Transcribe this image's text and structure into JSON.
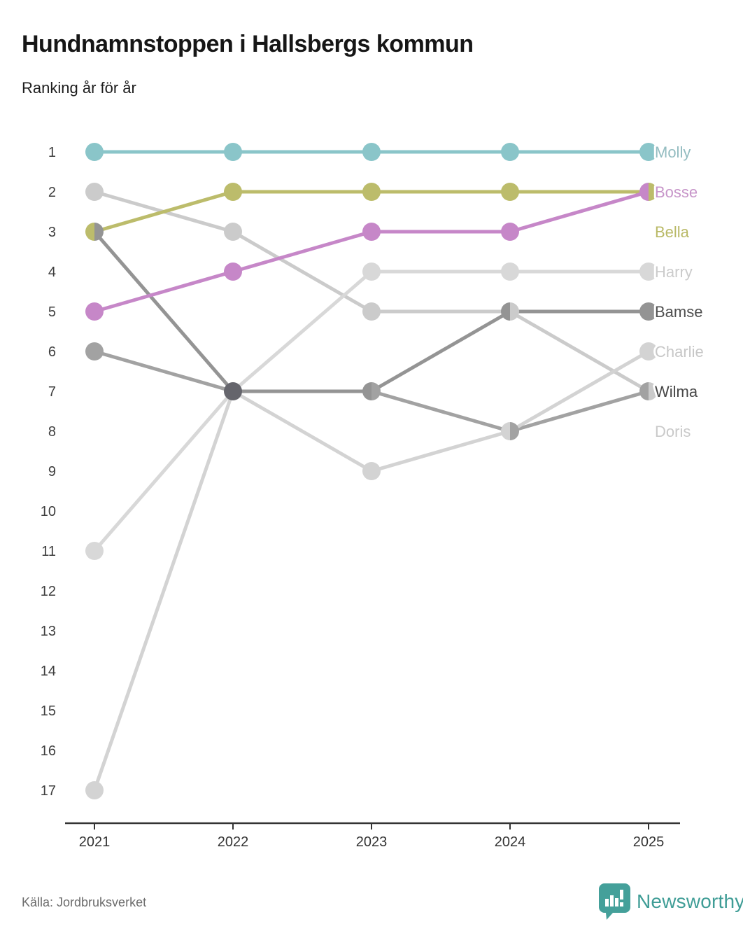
{
  "header": {
    "title": "Hundnamnstoppen i Hallsbergs kommun",
    "subtitle": "Ranking år för år"
  },
  "chart_data": {
    "type": "line",
    "subtype": "bump-ranking",
    "x": [
      2021,
      2022,
      2023,
      2024,
      2025
    ],
    "yticks": [
      1,
      2,
      3,
      4,
      5,
      6,
      7,
      8,
      9,
      10,
      11,
      12,
      13,
      14,
      15,
      16,
      17
    ],
    "ylim": [
      1,
      17
    ],
    "y_axis_inverted": true,
    "grid": false,
    "legend_position": "labels-right-of-last-point",
    "axis_color": "#333333",
    "tick_label_color": "#333333",
    "rank_label_color": "#3d3d3d",
    "multi_overlap_dot_color": "#65656c",
    "series": [
      {
        "name": "Molly",
        "color": "#8ac5c9",
        "label_color": "#93bcc0",
        "values": [
          1,
          1,
          1,
          1,
          1
        ],
        "label_rank": 1
      },
      {
        "name": "Bosse",
        "color": "#c687c8",
        "label_color": "#c795c9",
        "values": [
          5,
          4,
          3,
          3,
          2
        ],
        "label_rank": 2
      },
      {
        "name": "Bella",
        "color": "#bcbc6b",
        "label_color": "#b9b966",
        "values": [
          3,
          2,
          2,
          2,
          2
        ],
        "label_rank": 3
      },
      {
        "name": "Harry",
        "color": "#d8d8d8",
        "label_color": "#cbcbcb",
        "values": [
          11,
          7,
          4,
          4,
          4
        ],
        "label_rank": 4
      },
      {
        "name": "Bamse",
        "color": "#949494",
        "label_color": "#4f4f4f",
        "values": [
          3,
          7,
          7,
          5,
          5
        ],
        "label_rank": 5
      },
      {
        "name": "Charlie",
        "color": "#d3d3d3",
        "label_color": "#c7c7c7",
        "values": [
          17,
          7,
          9,
          8,
          6
        ],
        "label_rank": 6
      },
      {
        "name": "Wilma",
        "color": "#a2a2a2",
        "label_color": "#474747",
        "values": [
          6,
          7,
          7,
          8,
          7
        ],
        "label_rank": 7
      },
      {
        "name": "Doris",
        "color": "#cbcbcb",
        "label_color": "#c9c9c9",
        "values": [
          2,
          3,
          5,
          5,
          7
        ],
        "label_rank": 8
      }
    ]
  },
  "footer": {
    "source": "Källa: Jordbruksverket",
    "brand": "Newsworthy"
  },
  "brand_colors": {
    "logo_teal": "#44a09a",
    "text_teal": "#3f9d96"
  }
}
